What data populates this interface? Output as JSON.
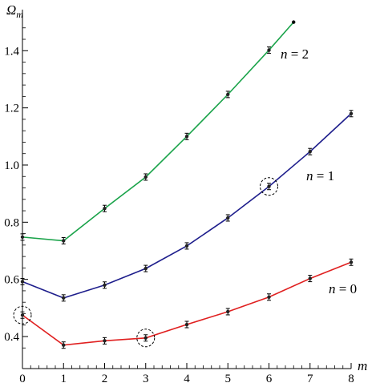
{
  "chart_data": {
    "type": "line",
    "title": "",
    "xlabel": "m",
    "ylabel": "Ω_m",
    "xlim": [
      0,
      8
    ],
    "ylim": [
      0.35,
      1.52
    ],
    "x_ticks": [
      "0",
      "1",
      "2",
      "3",
      "4",
      "5",
      "6",
      "7",
      "8"
    ],
    "y_ticks": [
      "0.4",
      "0.6",
      "0.8",
      "1.0",
      "1.2",
      "1.4"
    ],
    "grid": false,
    "series": [
      {
        "name": "n = 0",
        "color": "#e02020",
        "x": [
          0,
          1,
          2,
          3,
          4,
          5,
          6,
          7,
          8
        ],
        "y": [
          0.475,
          0.37,
          0.385,
          0.395,
          0.442,
          0.487,
          0.538,
          0.603,
          0.66
        ]
      },
      {
        "name": "n = 1",
        "color": "#1e1e8c",
        "x": [
          0,
          1,
          2,
          3,
          4,
          5,
          6,
          7,
          8
        ],
        "y": [
          0.592,
          0.535,
          0.58,
          0.638,
          0.717,
          0.815,
          0.925,
          1.047,
          1.18
        ]
      },
      {
        "name": "n = 2",
        "color": "#1aa34a",
        "x": [
          0,
          1,
          2,
          3,
          4,
          5,
          6,
          6.6
        ],
        "y": [
          0.748,
          0.735,
          0.848,
          0.958,
          1.1,
          1.247,
          1.402,
          1.5
        ],
        "last_point_marker": "dot"
      }
    ],
    "annotations": {
      "circled_points": [
        {
          "series": "n = 0",
          "x": 0,
          "y": 0.475
        },
        {
          "series": "n = 0",
          "x": 3,
          "y": 0.395
        },
        {
          "series": "n = 1",
          "x": 6,
          "y": 0.925
        }
      ]
    }
  }
}
